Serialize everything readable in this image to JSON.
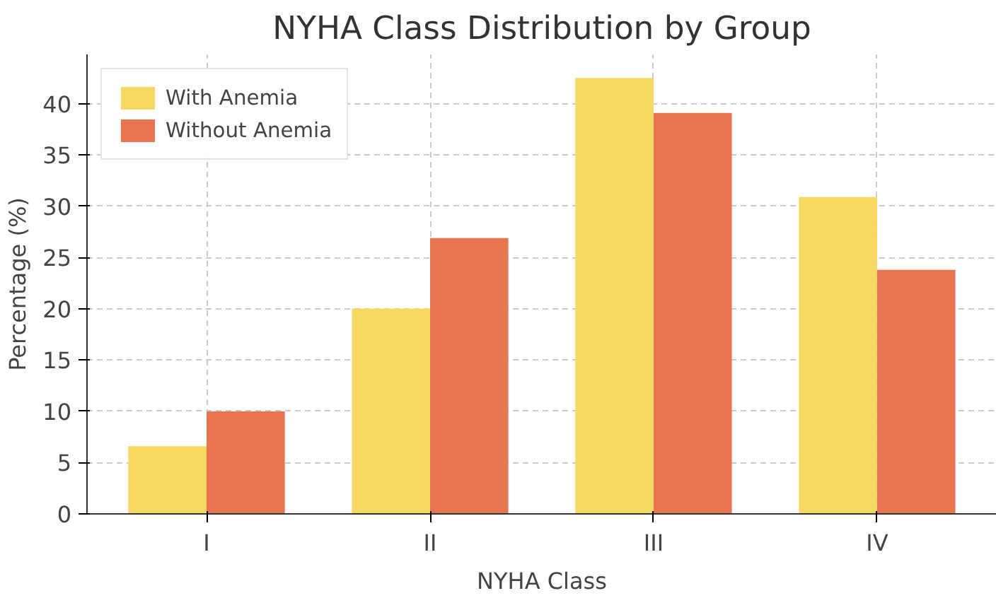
{
  "chart_data": {
    "type": "bar",
    "title": "NYHA Class Distribution by Group",
    "xlabel": "NYHA Class",
    "ylabel": "Percentage (%)",
    "categories": [
      "I",
      "II",
      "III",
      "IV"
    ],
    "series": [
      {
        "name": "With Anemia",
        "color": "#f7d862",
        "values": [
          6.6,
          20.0,
          42.5,
          30.9
        ]
      },
      {
        "name": "Without Anemia",
        "color": "#e8754f",
        "values": [
          10.0,
          26.9,
          39.1,
          23.8
        ]
      }
    ],
    "ylim": [
      0,
      44.8
    ],
    "yticks": [
      0,
      5,
      10,
      15,
      20,
      25,
      30,
      35,
      40
    ],
    "grid": true,
    "legend": "top left"
  }
}
